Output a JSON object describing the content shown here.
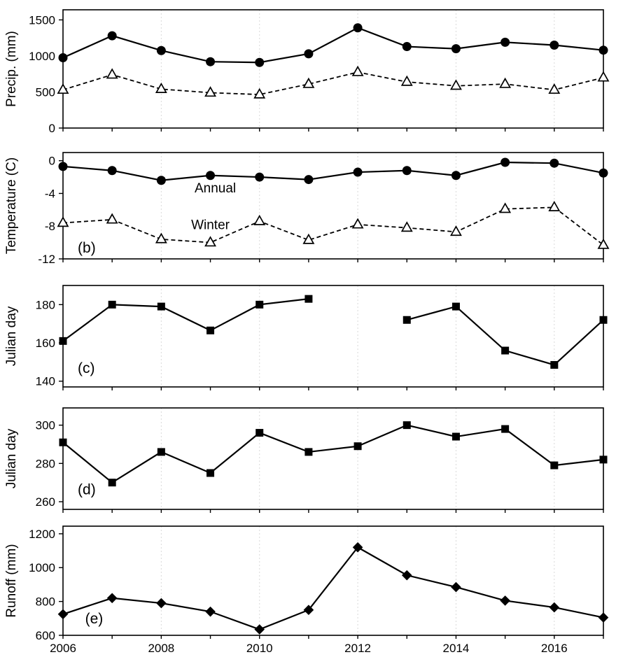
{
  "chart_data": {
    "type": "line",
    "x": {
      "years": [
        2006,
        2007,
        2008,
        2009,
        2010,
        2011,
        2012,
        2013,
        2014,
        2015,
        2016,
        2017
      ],
      "ticks": [
        2006,
        2008,
        2010,
        2012,
        2014,
        2016
      ],
      "xlim": [
        2006,
        2017
      ]
    },
    "panels": [
      {
        "id": "a",
        "label": "",
        "ylabel": "Precip. (mm)",
        "ylim": [
          0,
          1640
        ],
        "yticks": [
          0,
          500,
          1000,
          1500
        ],
        "series": [
          {
            "name": "annual-precipitation",
            "marker": "circle",
            "line": "solid",
            "values": [
              975,
              1280,
              1075,
              920,
              910,
              1030,
              1390,
              1130,
              1100,
              1190,
              1150,
              1080
            ]
          },
          {
            "name": "winter-precipitation",
            "marker": "triangle-open",
            "line": "dashed",
            "values": [
              530,
              740,
              540,
              490,
              465,
              610,
              775,
              640,
              585,
              610,
              530,
              700
            ]
          }
        ],
        "annotations": []
      },
      {
        "id": "b",
        "label": "(b)",
        "label_pos": {
          "x": 2006.3,
          "y": -10.6
        },
        "ylabel": "Temperature (C)",
        "ylim": [
          -12,
          1
        ],
        "yticks": [
          0,
          -4,
          -8,
          -12
        ],
        "series": [
          {
            "name": "annual-temperature",
            "marker": "circle",
            "line": "solid",
            "values": [
              -0.7,
              -1.2,
              -2.4,
              -1.8,
              -2.0,
              -2.3,
              -1.4,
              -1.2,
              -1.8,
              -0.2,
              -0.3,
              -1.5
            ]
          },
          {
            "name": "winter-temperature",
            "marker": "triangle-open",
            "line": "dashed",
            "values": [
              -7.6,
              -7.2,
              -9.6,
              -10.0,
              -7.4,
              -9.7,
              -7.8,
              -8.2,
              -8.7,
              -5.9,
              -5.7,
              -10.3
            ]
          }
        ],
        "annotations": [
          {
            "text": "Annual",
            "x": 2009.1,
            "y": -3.3
          },
          {
            "text": "Winter",
            "x": 2009.0,
            "y": -7.8
          }
        ]
      },
      {
        "id": "c",
        "label": "(c)",
        "label_pos": {
          "x": 2006.3,
          "y": 147
        },
        "ylabel": "Julian day",
        "ylim": [
          137,
          190
        ],
        "yticks": [
          140,
          160,
          180
        ],
        "series": [
          {
            "name": "snowmelt-julian-day",
            "marker": "square",
            "line": "solid",
            "values": [
              161,
              180,
              179,
              166.5,
              180,
              183,
              null,
              172,
              179,
              156,
              148.5,
              172
            ]
          }
        ],
        "annotations": []
      },
      {
        "id": "d",
        "label": "(d)",
        "label_pos": {
          "x": 2006.3,
          "y": 266.5
        },
        "ylabel": "Julian day",
        "ylim": [
          256,
          309
        ],
        "yticks": [
          260,
          280,
          300
        ],
        "series": [
          {
            "name": "freezeup-julian-day",
            "marker": "square",
            "line": "solid",
            "values": [
              291,
              270,
              286,
              275,
              296,
              286,
              289,
              300,
              294,
              298,
              279,
              282
            ]
          }
        ],
        "annotations": []
      },
      {
        "id": "e",
        "label": "(e)",
        "label_pos": {
          "x": 2006.45,
          "y": 700
        },
        "ylabel": "Runoff (mm)",
        "ylim": [
          600,
          1245
        ],
        "yticks": [
          600,
          800,
          1000,
          1200
        ],
        "series": [
          {
            "name": "annual-runoff",
            "marker": "diamond",
            "line": "solid",
            "values": [
              725,
              820,
              790,
              740,
              635,
              750,
              1120,
              955,
              885,
              805,
              765,
              705
            ]
          }
        ],
        "annotations": []
      }
    ],
    "colors": {
      "line": "#000000",
      "marker_fill": "#000000",
      "open_marker_fill": "#ffffff",
      "gridline": "#d9d9d9",
      "frame": "#000000"
    }
  }
}
